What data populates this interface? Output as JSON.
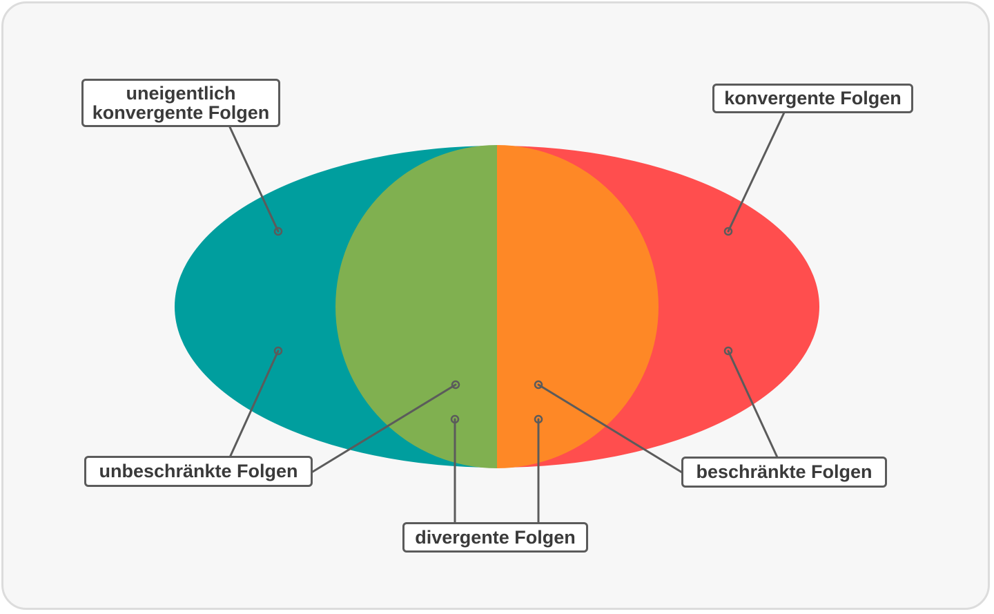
{
  "colors": {
    "background": "#f7f7f7",
    "unbeschraenkt_konvergent_teal": "#009e9e",
    "unbeschraenkt_divergent_green": "#80b050",
    "beschraenkt_divergent_orange": "#fe8826",
    "beschraenkt_konvergent_red": "#ff4e4e",
    "connector": "#5b5b5b"
  },
  "labels": {
    "uneigentlich_line1": "uneigentlich",
    "uneigentlich_line2": "konvergente Folgen",
    "konvergente": "konvergente Folgen",
    "unbeschraenkte": "unbeschränkte Folgen",
    "beschraenkte": "beschränkte Folgen",
    "divergente": "divergente Folgen"
  }
}
